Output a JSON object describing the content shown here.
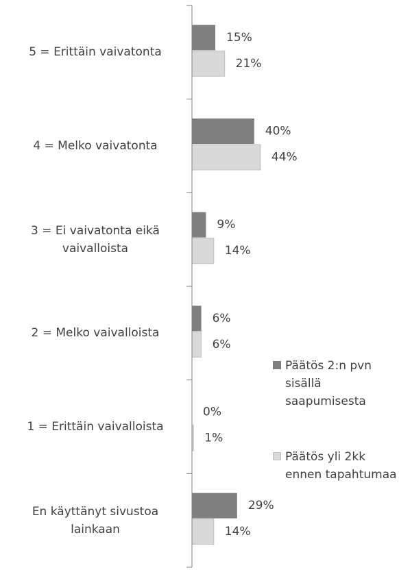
{
  "chart_data": {
    "type": "bar",
    "orientation": "horizontal",
    "categories": [
      "5 = Erittäin vaivatonta",
      "4 = Melko vaivatonta",
      "3 = Ei vaivatonta eikä vaivalloista",
      "2 = Melko vaivalloista",
      "1 = Erittäin vaivalloista",
      "En käyttänyt sivustoa lainkaan"
    ],
    "series": [
      {
        "name": "Päätös 2:n pvn sisällä saapumisesta",
        "color": "#7f7f7f",
        "values": [
          15,
          40,
          9,
          6,
          0,
          29
        ],
        "value_labels": [
          "15%",
          "40%",
          "9%",
          "6%",
          "0%",
          "29%"
        ]
      },
      {
        "name": "Päätös yli 2kk ennen tapahtumaa",
        "color": "#d9d9d9",
        "values": [
          21,
          44,
          14,
          6,
          1,
          14
        ],
        "value_labels": [
          "21%",
          "44%",
          "14%",
          "6%",
          "1%",
          "14%"
        ]
      }
    ],
    "xlim": [
      0,
      100
    ],
    "legend": "right"
  }
}
